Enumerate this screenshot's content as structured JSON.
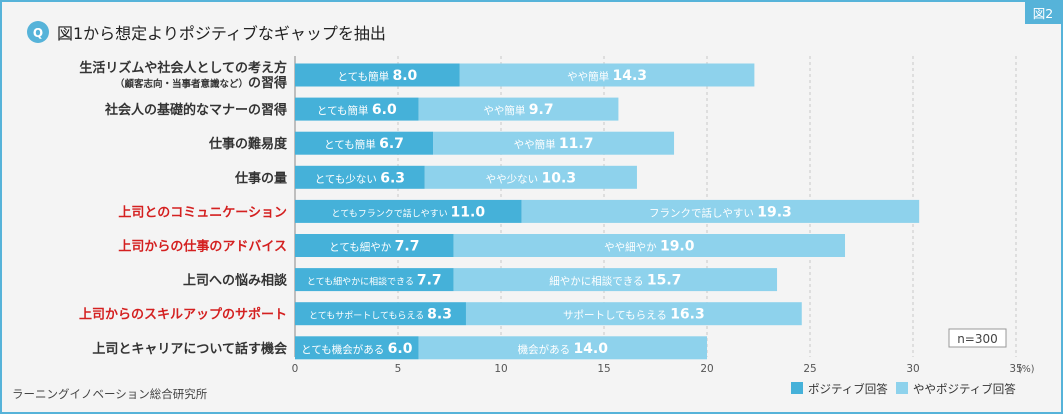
{
  "header": {
    "q_label": "Q",
    "title": "図1から想定よりポジティブなギャップを抽出",
    "figure_tag": "図2"
  },
  "source": "ラーニングイノベーション総合研究所",
  "n_label": "n=300",
  "colors": {
    "positive": "#45b1d9",
    "somewhat": "#8ed2ec",
    "frame": "#56b3d9",
    "highlight_text": "#d42020",
    "normal_text": "#333333",
    "grid": "#c8c8c8"
  },
  "chart_data": {
    "type": "bar",
    "orientation": "horizontal",
    "stacked": true,
    "title": "図1から想定よりポジティブなギャップを抽出",
    "xlabel": "",
    "ylabel": "",
    "xlim": [
      0,
      35
    ],
    "x_ticks": [
      "0",
      "5",
      "10",
      "15",
      "20",
      "25",
      "30",
      "35"
    ],
    "unit_label": "(%)",
    "categories": [
      {
        "label": "生活リズムや社会人としての考え方",
        "sublabel": "（顧客志向・当事者意識など）の習得",
        "highlight": false
      },
      {
        "label": "社会人の基礎的なマナーの習得",
        "sublabel": "",
        "highlight": false
      },
      {
        "label": "仕事の難易度",
        "sublabel": "",
        "highlight": false
      },
      {
        "label": "仕事の量",
        "sublabel": "",
        "highlight": false
      },
      {
        "label": "上司とのコミュニケーション",
        "sublabel": "",
        "highlight": true
      },
      {
        "label": "上司からの仕事のアドバイス",
        "sublabel": "",
        "highlight": true
      },
      {
        "label": "上司への悩み相談",
        "sublabel": "",
        "highlight": false
      },
      {
        "label": "上司からのスキルアップのサポート",
        "sublabel": "",
        "highlight": true
      },
      {
        "label": "上司とキャリアについて話す機会",
        "sublabel": "",
        "highlight": false
      }
    ],
    "series": [
      {
        "name": "ポジティブ回答",
        "values": [
          8.0,
          6.0,
          6.7,
          6.3,
          11.0,
          7.7,
          7.7,
          8.3,
          6.0
        ],
        "value_labels": [
          "8.0",
          "6.0",
          "6.7",
          "6.3",
          "11.0",
          "7.7",
          "7.7",
          "8.3",
          "6.0"
        ],
        "segment_texts": [
          "とても簡単",
          "とても簡単",
          "とても簡単",
          "とても少ない",
          "とてもフランクで話しやすい",
          "とても細やか",
          "とても細やかに相談できる",
          "とてもサポートしてもらえる",
          "とても機会がある"
        ]
      },
      {
        "name": "ややポジティブ回答",
        "values": [
          14.3,
          9.7,
          11.7,
          10.3,
          19.3,
          19.0,
          15.7,
          16.3,
          14.0
        ],
        "value_labels": [
          "14.3",
          "9.7",
          "11.7",
          "10.3",
          "19.3",
          "19.0",
          "15.7",
          "16.3",
          "14.0"
        ],
        "segment_texts": [
          "やや簡単",
          "やや簡単",
          "やや簡単",
          "やや少ない",
          "フランクで話しやすい",
          "やや細やか",
          "細やかに相談できる",
          "サポートしてもらえる",
          "機会がある"
        ]
      }
    ],
    "legend_position": "bottom-right"
  }
}
